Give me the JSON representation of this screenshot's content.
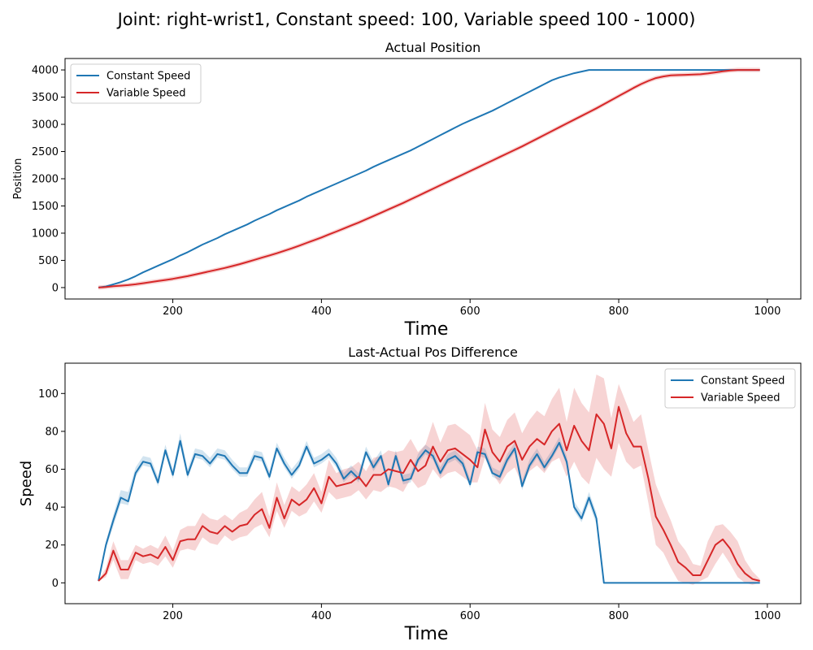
{
  "figure": {
    "suptitle": "Joint: right-wrist1, Constant speed: 100, Variable speed 100 - 1000)"
  },
  "colors": {
    "constant": "#1f77b4",
    "variable": "#d62728",
    "constant_band": "#1f77b4",
    "variable_band": "#d62728"
  },
  "chart_data": [
    {
      "type": "line",
      "title": "Actual Position",
      "xlabel": "Time",
      "ylabel": "Position",
      "xlim": [
        55,
        1045
      ],
      "ylim": [
        -210,
        4210
      ],
      "xticks": [
        200,
        400,
        600,
        800,
        1000
      ],
      "yticks": [
        0,
        500,
        1000,
        1500,
        2000,
        2500,
        3000,
        3500,
        4000
      ],
      "legend_position": "top-left",
      "grid": false,
      "x": [
        100,
        110,
        120,
        130,
        140,
        150,
        160,
        170,
        180,
        190,
        200,
        210,
        220,
        230,
        240,
        250,
        260,
        270,
        280,
        290,
        300,
        310,
        320,
        330,
        340,
        350,
        360,
        370,
        380,
        390,
        400,
        410,
        420,
        430,
        440,
        450,
        460,
        470,
        480,
        490,
        500,
        510,
        520,
        530,
        540,
        550,
        560,
        570,
        580,
        590,
        600,
        610,
        620,
        630,
        640,
        650,
        660,
        670,
        680,
        690,
        700,
        710,
        720,
        730,
        740,
        750,
        760,
        770,
        780,
        790,
        800,
        810,
        820,
        830,
        840,
        850,
        860,
        870,
        880,
        890,
        900,
        910,
        920,
        930,
        940,
        950,
        960,
        970,
        980,
        990
      ],
      "series": [
        {
          "name": "Constant Speed",
          "color": "#1f77b4",
          "values": [
            0,
            20,
            60,
            100,
            150,
            210,
            280,
            340,
            400,
            460,
            520,
            590,
            650,
            720,
            790,
            850,
            910,
            980,
            1040,
            1100,
            1160,
            1230,
            1290,
            1350,
            1420,
            1480,
            1540,
            1600,
            1670,
            1730,
            1790,
            1850,
            1910,
            1970,
            2030,
            2090,
            2150,
            2220,
            2280,
            2340,
            2400,
            2460,
            2520,
            2590,
            2660,
            2730,
            2800,
            2870,
            2940,
            3010,
            3070,
            3130,
            3190,
            3250,
            3320,
            3390,
            3460,
            3530,
            3600,
            3670,
            3740,
            3810,
            3860,
            3900,
            3940,
            3970,
            4000,
            4000,
            4000,
            4000,
            4000,
            4000,
            4000,
            4000,
            4000,
            4000,
            4000,
            4000,
            4000,
            4000,
            4000,
            4000,
            4000,
            4000,
            4000,
            4000,
            4000,
            4000,
            4000,
            4000
          ],
          "band": 0
        },
        {
          "name": "Variable Speed",
          "color": "#d62728",
          "values": [
            0,
            10,
            25,
            35,
            45,
            60,
            80,
            100,
            120,
            140,
            160,
            185,
            210,
            240,
            270,
            300,
            330,
            360,
            395,
            430,
            470,
            510,
            550,
            590,
            630,
            675,
            720,
            770,
            820,
            870,
            920,
            975,
            1030,
            1085,
            1140,
            1195,
            1255,
            1315,
            1375,
            1435,
            1495,
            1555,
            1620,
            1685,
            1750,
            1815,
            1880,
            1945,
            2010,
            2075,
            2140,
            2205,
            2270,
            2335,
            2400,
            2465,
            2530,
            2595,
            2665,
            2735,
            2805,
            2875,
            2945,
            3015,
            3085,
            3155,
            3225,
            3295,
            3370,
            3445,
            3520,
            3595,
            3670,
            3740,
            3800,
            3850,
            3880,
            3900,
            3905,
            3910,
            3915,
            3920,
            3935,
            3955,
            3975,
            3990,
            4000,
            4000,
            4000,
            4000
          ],
          "band": 40
        }
      ]
    },
    {
      "type": "line",
      "title": "Last-Actual Pos Difference",
      "xlabel": "Time",
      "ylabel": "Speed",
      "xlim": [
        55,
        1045
      ],
      "ylim": [
        -11,
        116
      ],
      "xticks": [
        200,
        400,
        600,
        800,
        1000
      ],
      "yticks": [
        0,
        20,
        40,
        60,
        80,
        100
      ],
      "legend_position": "top-right",
      "grid": false,
      "x": [
        100,
        110,
        120,
        130,
        140,
        150,
        160,
        170,
        180,
        190,
        200,
        210,
        220,
        230,
        240,
        250,
        260,
        270,
        280,
        290,
        300,
        310,
        320,
        330,
        340,
        350,
        360,
        370,
        380,
        390,
        400,
        410,
        420,
        430,
        440,
        450,
        460,
        470,
        480,
        490,
        500,
        510,
        520,
        530,
        540,
        550,
        560,
        570,
        580,
        590,
        600,
        610,
        620,
        630,
        640,
        650,
        660,
        670,
        680,
        690,
        700,
        710,
        720,
        730,
        740,
        750,
        760,
        770,
        780,
        790,
        800,
        810,
        820,
        830,
        840,
        850,
        860,
        870,
        880,
        890,
        900,
        910,
        920,
        930,
        940,
        950,
        960,
        970,
        980,
        990
      ],
      "series": [
        {
          "name": "Constant Speed",
          "color": "#1f77b4",
          "values": [
            1,
            20,
            33,
            45,
            43,
            58,
            64,
            63,
            53,
            70,
            57,
            75,
            57,
            68,
            67,
            63,
            68,
            67,
            62,
            58,
            58,
            67,
            66,
            56,
            71,
            63,
            57,
            62,
            72,
            63,
            65,
            68,
            63,
            55,
            59,
            55,
            69,
            61,
            67,
            52,
            67,
            54,
            55,
            65,
            70,
            67,
            58,
            65,
            67,
            63,
            52,
            69,
            68,
            58,
            56,
            65,
            71,
            51,
            62,
            68,
            61,
            67,
            74,
            64,
            40,
            34,
            45,
            34,
            0,
            0,
            0,
            0,
            0,
            0,
            0,
            0,
            0,
            0,
            0,
            0,
            0,
            0,
            0,
            0,
            0,
            0,
            0,
            0,
            0,
            0
          ],
          "lower": [
            1,
            18,
            30,
            42,
            41,
            56,
            62,
            61,
            51,
            68,
            55,
            72,
            55,
            66,
            65,
            61,
            66,
            65,
            60,
            56,
            56,
            65,
            64,
            54,
            69,
            61,
            55,
            60,
            70,
            61,
            63,
            66,
            61,
            53,
            57,
            53,
            67,
            59,
            65,
            50,
            65,
            52,
            53,
            63,
            68,
            65,
            56,
            63,
            65,
            61,
            50,
            67,
            66,
            56,
            54,
            63,
            69,
            49,
            60,
            66,
            59,
            65,
            72,
            62,
            38,
            32,
            42,
            31,
            0,
            0,
            0,
            0,
            0,
            0,
            0,
            0,
            0,
            0,
            0,
            0,
            0,
            0,
            0,
            0,
            0,
            0,
            0,
            0,
            0,
            0
          ],
          "upper": [
            1,
            22,
            36,
            49,
            48,
            61,
            67,
            66,
            56,
            73,
            60,
            79,
            60,
            71,
            70,
            66,
            71,
            70,
            65,
            61,
            61,
            70,
            69,
            59,
            74,
            66,
            60,
            65,
            75,
            66,
            68,
            71,
            66,
            58,
            62,
            58,
            72,
            64,
            70,
            55,
            70,
            57,
            58,
            68,
            73,
            70,
            61,
            68,
            70,
            66,
            55,
            72,
            71,
            61,
            59,
            68,
            74,
            54,
            65,
            71,
            64,
            70,
            77,
            67,
            43,
            37,
            48,
            37,
            0,
            0,
            0,
            0,
            0,
            0,
            0,
            0,
            0,
            0,
            0,
            0,
            0,
            0,
            0,
            0,
            0,
            0,
            0,
            0,
            0,
            0
          ]
        },
        {
          "name": "Variable Speed",
          "color": "#d62728",
          "values": [
            1,
            5,
            17,
            7,
            7,
            16,
            14,
            15,
            13,
            19,
            12,
            22,
            23,
            23,
            30,
            27,
            26,
            30,
            27,
            30,
            31,
            36,
            39,
            29,
            45,
            34,
            44,
            41,
            44,
            50,
            42,
            56,
            51,
            52,
            53,
            56,
            51,
            57,
            57,
            60,
            59,
            58,
            65,
            59,
            62,
            72,
            64,
            70,
            71,
            68,
            65,
            61,
            81,
            69,
            64,
            72,
            75,
            65,
            72,
            76,
            73,
            80,
            84,
            70,
            83,
            75,
            70,
            89,
            84,
            71,
            93,
            79,
            72,
            72,
            55,
            35,
            28,
            20,
            11,
            8,
            4,
            4,
            12,
            20,
            23,
            18,
            10,
            5,
            2,
            1
          ],
          "lower": [
            1,
            3,
            12,
            2,
            2,
            12,
            10,
            11,
            9,
            14,
            8,
            17,
            18,
            17,
            24,
            21,
            20,
            25,
            22,
            24,
            25,
            29,
            31,
            24,
            38,
            29,
            38,
            35,
            37,
            43,
            37,
            48,
            44,
            45,
            46,
            49,
            44,
            49,
            48,
            51,
            50,
            48,
            55,
            50,
            52,
            60,
            55,
            58,
            59,
            56,
            53,
            53,
            66,
            58,
            52,
            58,
            61,
            52,
            59,
            62,
            58,
            64,
            66,
            56,
            64,
            56,
            52,
            66,
            60,
            56,
            74,
            64,
            60,
            62,
            42,
            20,
            16,
            8,
            1,
            0,
            -1,
            1,
            3,
            10,
            16,
            10,
            3,
            0,
            -1,
            0
          ],
          "upper": [
            1,
            8,
            22,
            12,
            12,
            20,
            18,
            20,
            18,
            25,
            17,
            28,
            30,
            30,
            37,
            34,
            33,
            36,
            33,
            37,
            39,
            44,
            48,
            35,
            53,
            41,
            51,
            48,
            52,
            58,
            48,
            65,
            58,
            60,
            61,
            64,
            59,
            66,
            67,
            70,
            69,
            70,
            76,
            69,
            73,
            85,
            74,
            83,
            84,
            81,
            78,
            70,
            95,
            81,
            77,
            86,
            90,
            79,
            86,
            91,
            88,
            97,
            103,
            85,
            103,
            95,
            90,
            110,
            108,
            87,
            105,
            95,
            85,
            89,
            70,
            52,
            42,
            33,
            22,
            17,
            10,
            9,
            22,
            30,
            31,
            27,
            22,
            12,
            6,
            2
          ]
        }
      ]
    }
  ]
}
